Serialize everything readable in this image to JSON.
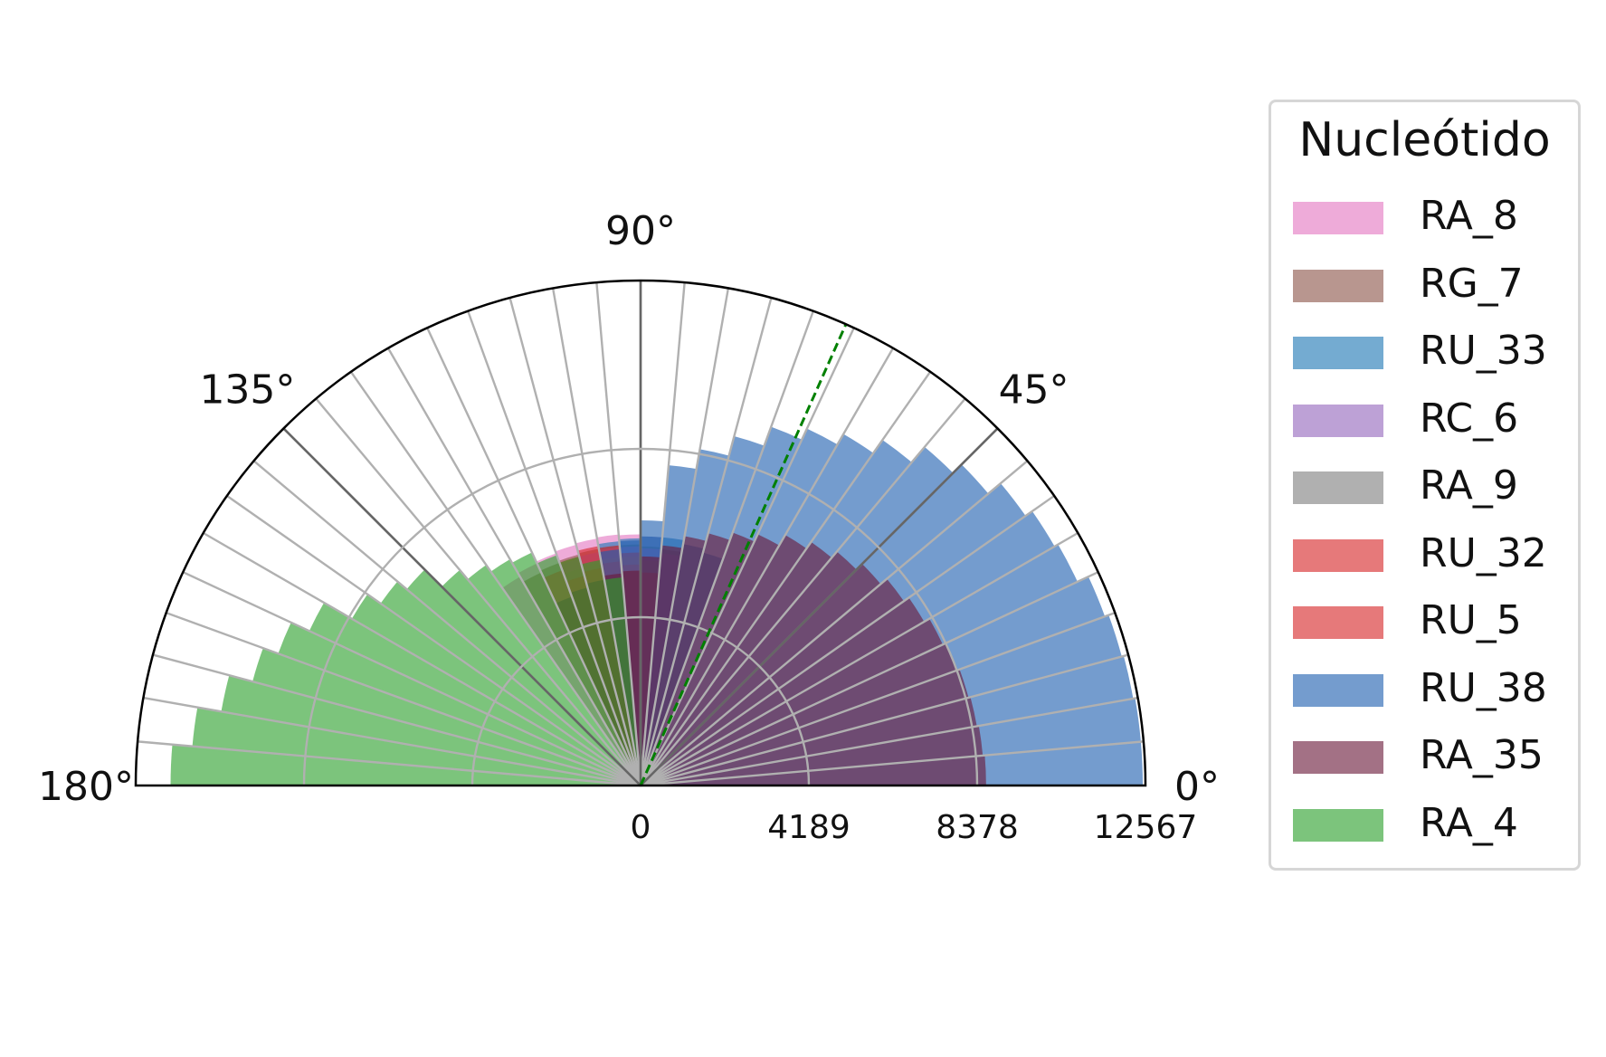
{
  "chart_data": {
    "type": "polar-bar",
    "angle_range_deg": [
      0,
      180
    ],
    "bins": 36,
    "bin_width_deg": 5,
    "theta_tick_labels": [
      "0°",
      "45°",
      "90°",
      "135°",
      "180°"
    ],
    "r_tick_labels": [
      "0",
      "4189",
      "8378",
      "12567"
    ],
    "r_ticks": [
      0,
      4189,
      8378,
      12567
    ],
    "rlim": [
      0,
      12567
    ],
    "reference_line_angle_deg": 66,
    "grid": true,
    "legend": {
      "title": "Nucleótido",
      "placement": "right"
    },
    "series": [
      {
        "name": "RA_8",
        "color": "#e377c2",
        "values": [
          0,
          0,
          0,
          0,
          0,
          0,
          0,
          0,
          0,
          0,
          0,
          0,
          0,
          0,
          0,
          0,
          0,
          6200,
          6250,
          6270,
          6240,
          6200,
          6150,
          6100,
          6000,
          0,
          0,
          0,
          0,
          0,
          0,
          0,
          0,
          0,
          0,
          0
        ]
      },
      {
        "name": "RG_7",
        "color": "#8c564b",
        "values": [
          0,
          0,
          0,
          0,
          0,
          0,
          0,
          0,
          0,
          0,
          0,
          0,
          0,
          0,
          0,
          0,
          5900,
          5950,
          6000,
          6000,
          5980,
          5950,
          5900,
          5850,
          0,
          0,
          0,
          0,
          0,
          0,
          0,
          0,
          0,
          0,
          0,
          0
        ]
      },
      {
        "name": "RU_33",
        "color": "#1f77b4",
        "values": [
          0,
          0,
          0,
          0,
          0,
          0,
          0,
          0,
          0,
          0,
          0,
          0,
          0,
          0,
          6000,
          6100,
          6200,
          6200,
          6150,
          6100,
          0,
          0,
          0,
          0,
          0,
          0,
          0,
          0,
          0,
          0,
          0,
          0,
          0,
          0,
          0,
          0
        ]
      },
      {
        "name": "RC_6",
        "color": "#9467bd",
        "values": [
          0,
          0,
          0,
          0,
          0,
          0,
          0,
          0,
          0,
          0,
          0,
          0,
          0,
          0,
          0,
          0,
          5800,
          5900,
          5950,
          5950,
          5900,
          5850,
          0,
          0,
          0,
          0,
          0,
          0,
          0,
          0,
          0,
          0,
          0,
          0,
          0,
          0
        ]
      },
      {
        "name": "RA_9",
        "color": "#7f7f7f",
        "values": [
          0,
          0,
          0,
          0,
          0,
          0,
          0,
          0,
          0,
          0,
          0,
          0,
          0,
          0,
          0,
          0,
          0,
          5600,
          5700,
          5700,
          5650,
          5600,
          0,
          0,
          0,
          0,
          0,
          0,
          0,
          0,
          0,
          0,
          0,
          0,
          0,
          0
        ]
      },
      {
        "name": "RU_32",
        "color": "#d62728",
        "values": [
          0,
          0,
          0,
          0,
          0,
          0,
          0,
          0,
          0,
          0,
          0,
          0,
          0,
          0,
          0,
          0,
          0,
          0,
          5800,
          6000,
          6050,
          5900,
          5700,
          0,
          0,
          0,
          0,
          0,
          0,
          0,
          0,
          0,
          0,
          0,
          0,
          0
        ]
      },
      {
        "name": "RU_5",
        "color": "#d62728",
        "values": [
          0,
          0,
          0,
          0,
          0,
          0,
          0,
          0,
          0,
          0,
          0,
          0,
          0,
          0,
          0,
          0,
          0,
          5300,
          5500,
          5600,
          5500,
          5400,
          0,
          0,
          0,
          0,
          0,
          0,
          0,
          0,
          0,
          0,
          0,
          0,
          0,
          0
        ]
      },
      {
        "name": "RU_38",
        "color": "#1f5fb0",
        "values": [
          12500,
          12500,
          12450,
          12400,
          12300,
          12000,
          11900,
          11700,
          11300,
          11000,
          10500,
          10100,
          9800,
          9500,
          9000,
          8500,
          8000,
          6600,
          6100,
          5900,
          0,
          0,
          0,
          0,
          0,
          0,
          0,
          0,
          0,
          0,
          0,
          0,
          0,
          0,
          0,
          0
        ]
      },
      {
        "name": "RA_35",
        "color": "#6b1a3a",
        "values": [
          8600,
          8550,
          8500,
          8450,
          8400,
          8300,
          8150,
          8000,
          7800,
          7600,
          7400,
          7200,
          6900,
          6700,
          6500,
          6300,
          6000,
          5700,
          5350,
          5300,
          5200,
          5100,
          5000,
          0,
          0,
          0,
          0,
          0,
          0,
          0,
          0,
          0,
          0,
          0,
          0,
          0
        ]
      },
      {
        "name": "RA_4",
        "color": "#2ca02c",
        "values": [
          0,
          0,
          0,
          0,
          0,
          0,
          0,
          0,
          0,
          0,
          0,
          0,
          0,
          0,
          0,
          0,
          0,
          0,
          0,
          5200,
          5700,
          5900,
          6100,
          6400,
          6500,
          6700,
          7000,
          7600,
          7900,
          8300,
          9100,
          9600,
          10000,
          10600,
          11200,
          11700
        ]
      }
    ]
  }
}
